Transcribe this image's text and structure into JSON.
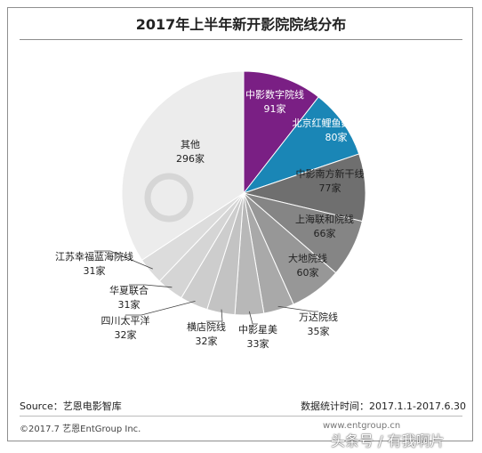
{
  "chart_data": {
    "type": "pie",
    "title": "2017年上半年新开影院院线分布",
    "slices": [
      {
        "label": "中影数字院线",
        "value": 91,
        "value_text": "91家",
        "color": "#7a1f84"
      },
      {
        "label": "北京红鲤鱼数字院线",
        "value": 80,
        "value_text": "80家",
        "color": "#1a86b6"
      },
      {
        "label": "中影南方新干线",
        "value": 77,
        "value_text": "77家",
        "color": "#6f6f6f"
      },
      {
        "label": "上海联和院线",
        "value": 66,
        "value_text": "66家",
        "color": "#858585"
      },
      {
        "label": "大地院线",
        "value": 60,
        "value_text": "60家",
        "color": "#979797"
      },
      {
        "label": "万达院线",
        "value": 35,
        "value_text": "35家",
        "color": "#a9a9a9"
      },
      {
        "label": "中影星美",
        "value": 33,
        "value_text": "33家",
        "color": "#b8b8b8"
      },
      {
        "label": "横店院线",
        "value": 32,
        "value_text": "32家",
        "color": "#c3c3c3"
      },
      {
        "label": "四川太平洋",
        "value": 32,
        "value_text": "32家",
        "color": "#cdcdcd"
      },
      {
        "label": "华夏联合",
        "value": 31,
        "value_text": "31家",
        "color": "#d5d5d5"
      },
      {
        "label": "江苏幸福蓝海院线",
        "value": 31,
        "value_text": "31家",
        "color": "#dcdcdc"
      },
      {
        "label": "其他",
        "value": 296,
        "value_text": "296家",
        "color": "#ececec"
      }
    ]
  },
  "footer": {
    "source": "Source：艺恩电影智库",
    "period": "数据统计时间：2017.1.1-2017.6.30",
    "copyright": "©2017.7 艺恩EntGroup Inc.",
    "website": "www.entgroup.cn"
  },
  "watermark": {
    "overlay_text": "头条号 / 有我啊片"
  }
}
